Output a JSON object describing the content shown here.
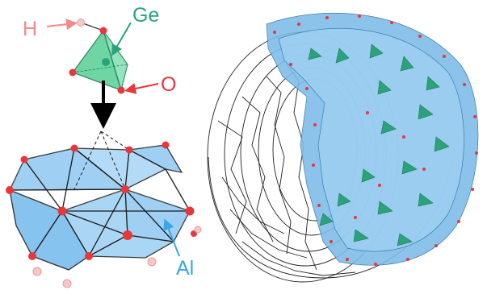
{
  "labels": {
    "hydrogen": "H",
    "germanium": "Ge",
    "oxygen": "O",
    "aluminum": "Al"
  },
  "colors": {
    "hydrogen": "#f08a8a",
    "germanium": "#2aa37a",
    "oxygen": "#e8363a",
    "aluminum": "#3aa6e8",
    "octahedron_fill": "#8fc8f2",
    "tetrahedron_fill": "#5fd19a",
    "tube_line": "#222222"
  }
}
